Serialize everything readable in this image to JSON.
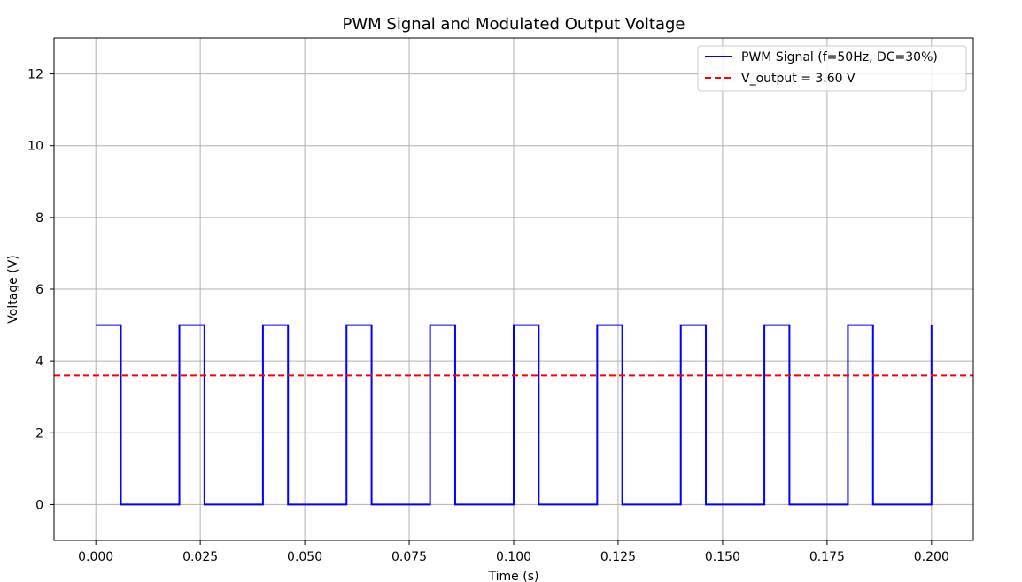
{
  "chart_data": {
    "type": "line",
    "title": "PWM Signal and Modulated Output Voltage",
    "xlabel": "Time (s)",
    "ylabel": "Voltage (V)",
    "xlim": [
      -0.01,
      0.21
    ],
    "ylim": [
      -1,
      13
    ],
    "xticks": [
      0.0,
      0.025,
      0.05,
      0.075,
      0.1,
      0.125,
      0.15,
      0.175,
      0.2
    ],
    "xtick_labels": [
      "0.000",
      "0.025",
      "0.050",
      "0.075",
      "0.100",
      "0.125",
      "0.150",
      "0.175",
      "0.200"
    ],
    "yticks": [
      0,
      2,
      4,
      6,
      8,
      10,
      12
    ],
    "ytick_labels": [
      "0",
      "2",
      "4",
      "6",
      "8",
      "10",
      "12"
    ],
    "grid": true,
    "legend_position": "top-right",
    "series": [
      {
        "name": "PWM Signal (f=50Hz, DC=30%)",
        "style": "solid",
        "color": "#0000ff",
        "x": [
          0.0,
          0.006,
          0.006,
          0.02,
          0.02,
          0.026,
          0.026,
          0.04,
          0.04,
          0.046,
          0.046,
          0.06,
          0.06,
          0.066,
          0.066,
          0.08,
          0.08,
          0.086,
          0.086,
          0.1,
          0.1,
          0.106,
          0.106,
          0.12,
          0.12,
          0.126,
          0.126,
          0.14,
          0.14,
          0.146,
          0.146,
          0.16,
          0.16,
          0.166,
          0.166,
          0.18,
          0.18,
          0.186,
          0.186,
          0.2,
          0.2
        ],
        "y": [
          5,
          5,
          0,
          0,
          5,
          5,
          0,
          0,
          5,
          5,
          0,
          0,
          5,
          5,
          0,
          0,
          5,
          5,
          0,
          0,
          5,
          5,
          0,
          0,
          5,
          5,
          0,
          0,
          5,
          5,
          0,
          0,
          5,
          5,
          0,
          0,
          5,
          5,
          0,
          0,
          5
        ]
      },
      {
        "name": "V_output = 3.60 V",
        "style": "dashed",
        "color": "#ff0000",
        "type": "hline",
        "value": 3.6
      }
    ]
  }
}
